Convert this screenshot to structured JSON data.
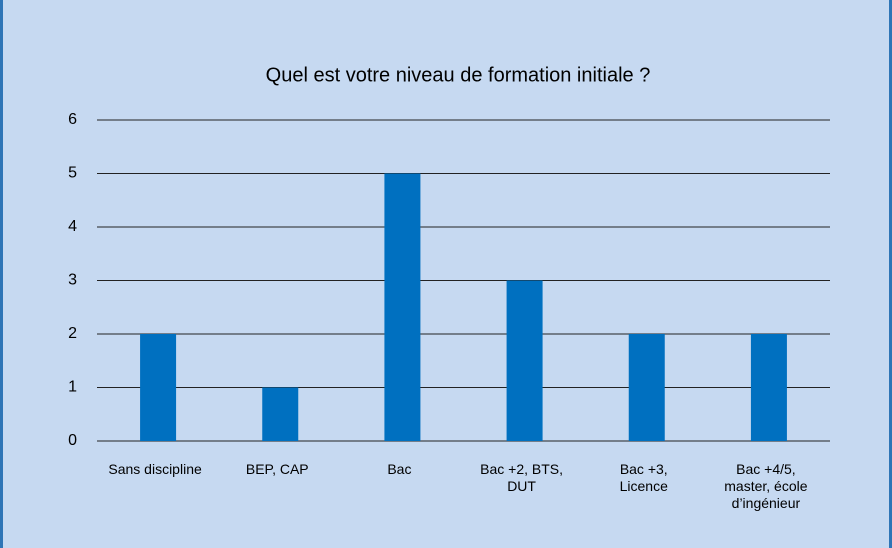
{
  "chart_data": {
    "type": "bar",
    "title": "Quel est votre niveau de formation initiale ?",
    "categories": [
      "Sans discipline",
      "BEP, CAP",
      "Bac",
      "Bac +2, BTS,\nDUT",
      "Bac +3,\nLicence",
      "Bac +4/5,\nmaster, école\nd’ingénieur"
    ],
    "values": [
      2,
      1,
      5,
      3,
      2,
      2
    ],
    "color": "#0070c0",
    "ylim": [
      0,
      6
    ],
    "yticks": [
      0,
      1,
      2,
      3,
      4,
      5,
      6
    ],
    "grid": true
  }
}
